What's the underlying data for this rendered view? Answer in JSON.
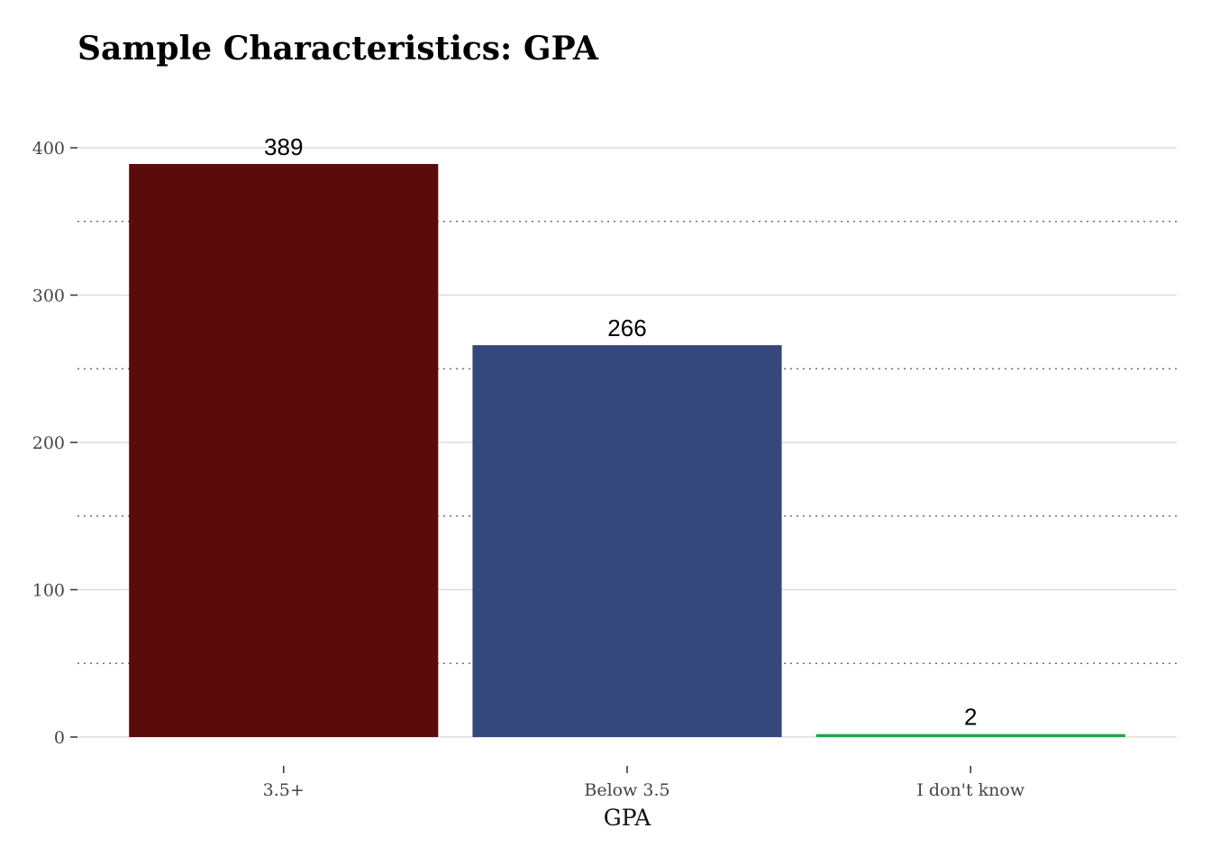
{
  "chart_data": {
    "type": "bar",
    "title": "Sample Characteristics: GPA",
    "xlabel": "GPA",
    "ylabel": "",
    "categories": [
      "3.5+",
      "Below 3.5",
      "I don't know"
    ],
    "values": [
      389,
      266,
      2
    ],
    "data_labels": [
      "389",
      "266",
      "2"
    ],
    "colors": [
      "#5c0b0c",
      "#35467a",
      "#18a843"
    ],
    "ylim": [
      0,
      400
    ],
    "yticks": [
      0,
      100,
      200,
      300,
      400
    ],
    "ytick_labels": [
      "0",
      "100",
      "200",
      "300",
      "400"
    ],
    "major_grid": "solid",
    "minor_grid": "dotted",
    "legend": "none"
  }
}
